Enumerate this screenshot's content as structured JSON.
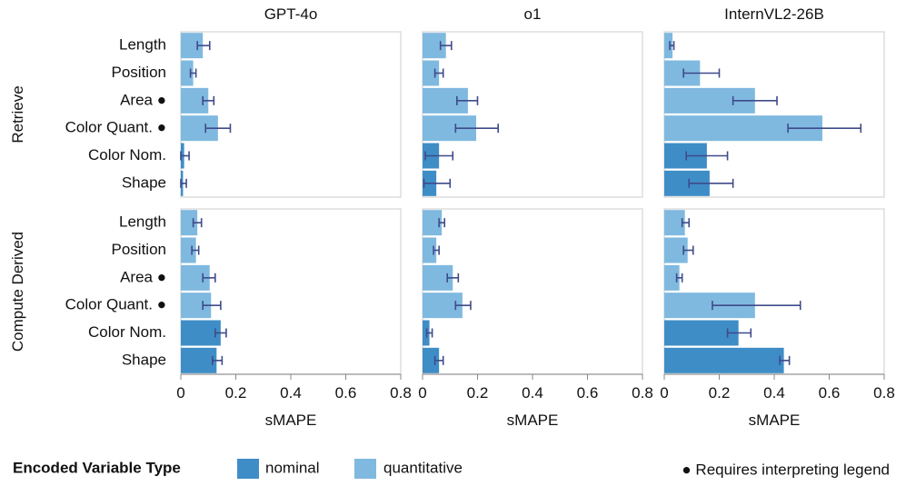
{
  "chart_data": {
    "type": "bar",
    "orientation": "horizontal",
    "xlabel": "sMAPE",
    "xlim": [
      0,
      0.8
    ],
    "xticks": [
      0,
      0.2,
      0.4,
      0.6,
      0.8
    ],
    "xtick_labels": [
      "0",
      "0.2",
      "0.4",
      "0.6",
      "0.8"
    ],
    "columns": [
      "GPT-4o",
      "o1",
      "InternVL2-26B"
    ],
    "rows": [
      "Retrieve",
      "Compute Derived"
    ],
    "categories": [
      "Length",
      "Position",
      "Area ●",
      "Color Quant. ●",
      "Color Nom.",
      "Shape"
    ],
    "category_types": [
      "quantitative",
      "quantitative",
      "quantitative",
      "quantitative",
      "nominal",
      "nominal"
    ],
    "panels": [
      {
        "row": "Retrieve",
        "column": "GPT-4o",
        "values": [
          0.08,
          0.045,
          0.1,
          0.135,
          0.012,
          0.008
        ],
        "err_low": [
          0.06,
          0.035,
          0.08,
          0.09,
          0.0,
          0.0
        ],
        "err_high": [
          0.105,
          0.055,
          0.12,
          0.18,
          0.03,
          0.02
        ]
      },
      {
        "row": "Retrieve",
        "column": "o1",
        "values": [
          0.085,
          0.06,
          0.165,
          0.195,
          0.06,
          0.05
        ],
        "err_low": [
          0.065,
          0.045,
          0.125,
          0.12,
          0.01,
          0.005
        ],
        "err_high": [
          0.105,
          0.075,
          0.2,
          0.275,
          0.11,
          0.1
        ]
      },
      {
        "row": "Retrieve",
        "column": "InternVL2-26B",
        "values": [
          0.03,
          0.13,
          0.33,
          0.575,
          0.155,
          0.165
        ],
        "err_low": [
          0.02,
          0.07,
          0.25,
          0.45,
          0.08,
          0.09
        ],
        "err_high": [
          0.035,
          0.2,
          0.41,
          0.715,
          0.23,
          0.25
        ]
      },
      {
        "row": "Compute Derived",
        "column": "GPT-4o",
        "values": [
          0.06,
          0.055,
          0.105,
          0.11,
          0.145,
          0.13
        ],
        "err_low": [
          0.045,
          0.04,
          0.08,
          0.08,
          0.125,
          0.115
        ],
        "err_high": [
          0.075,
          0.065,
          0.125,
          0.145,
          0.165,
          0.15
        ]
      },
      {
        "row": "Compute Derived",
        "column": "o1",
        "values": [
          0.07,
          0.05,
          0.11,
          0.145,
          0.025,
          0.06
        ],
        "err_low": [
          0.06,
          0.04,
          0.09,
          0.12,
          0.015,
          0.045
        ],
        "err_high": [
          0.08,
          0.06,
          0.13,
          0.175,
          0.035,
          0.075
        ]
      },
      {
        "row": "Compute Derived",
        "column": "InternVL2-26B",
        "values": [
          0.075,
          0.085,
          0.055,
          0.33,
          0.27,
          0.435
        ],
        "err_low": [
          0.065,
          0.07,
          0.045,
          0.175,
          0.23,
          0.42
        ],
        "err_high": [
          0.09,
          0.105,
          0.065,
          0.495,
          0.315,
          0.455
        ]
      }
    ],
    "colors": {
      "nominal": "#3f8dc7",
      "quantitative": "#7fb9e0",
      "error_bar": "#3f4a8a"
    },
    "legend": {
      "title": "Encoded Variable Type",
      "items": [
        {
          "label": "nominal",
          "key": "nominal"
        },
        {
          "label": "quantitative",
          "key": "quantitative"
        }
      ],
      "placement": "bottom-left"
    },
    "note": "● Requires interpreting legend",
    "grid": false
  }
}
